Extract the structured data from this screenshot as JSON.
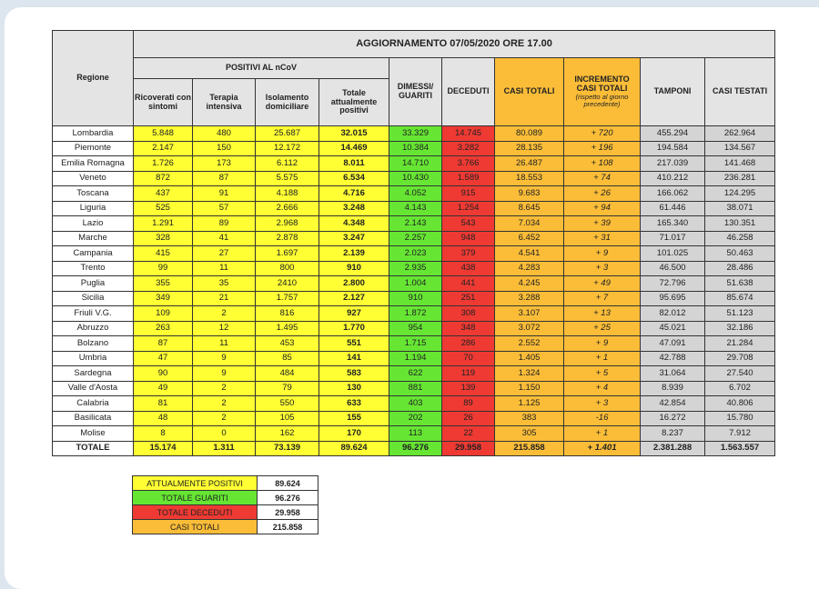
{
  "header": {
    "title": "AGGIORNAMENTO 07/05/2020 ORE 17.00",
    "regione": "Regione",
    "positivi_group": "POSITIVI AL nCoV",
    "columns": [
      "Ricoverati con sintomi",
      "Terapia intensiva",
      "Isolamento domiciliare",
      "Totale attualmente positivi",
      "DIMESSI/ GUARITI",
      "DECEDUTI",
      "CASI TOTALI",
      "INCREMENTO CASI TOTALI",
      "TAMPONI",
      "CASI TESTATI"
    ],
    "incremento_note": "(rispetto al giorno precedente)"
  },
  "colors": {
    "yellow": "#ffff33",
    "green": "#66e633",
    "red": "#ee3a33",
    "orange": "#fbbd38",
    "gray": "#d4d4d4"
  },
  "rows": [
    [
      "Lombardia",
      "5.848",
      "480",
      "25.687",
      "32.015",
      "33.329",
      "14.745",
      "80.089",
      "+ 720",
      "455.294",
      "262.964"
    ],
    [
      "Piemonte",
      "2.147",
      "150",
      "12.172",
      "14.469",
      "10.384",
      "3.282",
      "28.135",
      "+ 196",
      "194.584",
      "134.567"
    ],
    [
      "Emilia Romagna",
      "1.726",
      "173",
      "6.112",
      "8.011",
      "14.710",
      "3.766",
      "26.487",
      "+ 108",
      "217.039",
      "141.468"
    ],
    [
      "Veneto",
      "872",
      "87",
      "5.575",
      "6.534",
      "10.430",
      "1.589",
      "18.553",
      "+ 74",
      "410.212",
      "236.281"
    ],
    [
      "Toscana",
      "437",
      "91",
      "4.188",
      "4.716",
      "4.052",
      "915",
      "9.683",
      "+ 26",
      "166.062",
      "124.295"
    ],
    [
      "Liguria",
      "525",
      "57",
      "2.666",
      "3.248",
      "4.143",
      "1.254",
      "8.645",
      "+ 94",
      "61.446",
      "38.071"
    ],
    [
      "Lazio",
      "1.291",
      "89",
      "2.968",
      "4.348",
      "2.143",
      "543",
      "7.034",
      "+ 39",
      "165.340",
      "130.351"
    ],
    [
      "Marche",
      "328",
      "41",
      "2.878",
      "3.247",
      "2.257",
      "948",
      "6.452",
      "+ 31",
      "71.017",
      "46.258"
    ],
    [
      "Campania",
      "415",
      "27",
      "1.697",
      "2.139",
      "2.023",
      "379",
      "4.541",
      "+ 9",
      "101.025",
      "50.463"
    ],
    [
      "Trento",
      "99",
      "11",
      "800",
      "910",
      "2.935",
      "438",
      "4.283",
      "+ 3",
      "46.500",
      "28.486"
    ],
    [
      "Puglia",
      "355",
      "35",
      "2410",
      "2.800",
      "1.004",
      "441",
      "4.245",
      "+ 49",
      "72.796",
      "51.638"
    ],
    [
      "Sicilia",
      "349",
      "21",
      "1.757",
      "2.127",
      "910",
      "251",
      "3.288",
      "+ 7",
      "95.695",
      "85.674"
    ],
    [
      "Friuli V.G.",
      "109",
      "2",
      "816",
      "927",
      "1.872",
      "308",
      "3.107",
      "+ 13",
      "82.012",
      "51.123"
    ],
    [
      "Abruzzo",
      "263",
      "12",
      "1.495",
      "1.770",
      "954",
      "348",
      "3.072",
      "+ 25",
      "45.021",
      "32.186"
    ],
    [
      "Bolzano",
      "87",
      "11",
      "453",
      "551",
      "1.715",
      "286",
      "2.552",
      "+ 9",
      "47.091",
      "21.284"
    ],
    [
      "Umbria",
      "47",
      "9",
      "85",
      "141",
      "1.194",
      "70",
      "1.405",
      "+ 1",
      "42.788",
      "29.708"
    ],
    [
      "Sardegna",
      "90",
      "9",
      "484",
      "583",
      "622",
      "119",
      "1.324",
      "+ 5",
      "31.064",
      "27.540"
    ],
    [
      "Valle d'Aosta",
      "49",
      "2",
      "79",
      "130",
      "881",
      "139",
      "1.150",
      "+ 4",
      "8.939",
      "6.702"
    ],
    [
      "Calabria",
      "81",
      "2",
      "550",
      "633",
      "403",
      "89",
      "1.125",
      "+ 3",
      "42.854",
      "40.806"
    ],
    [
      "Basilicata",
      "48",
      "2",
      "105",
      "155",
      "202",
      "26",
      "383",
      "-16",
      "16.272",
      "15.780"
    ],
    [
      "Molise",
      "8",
      "0",
      "162",
      "170",
      "113",
      "22",
      "305",
      "+ 1",
      "8.237",
      "7.912"
    ]
  ],
  "total": [
    "TOTALE",
    "15.174",
    "1.311",
    "73.139",
    "89.624",
    "96.276",
    "29.958",
    "215.858",
    "+ 1.401",
    "2.381.288",
    "1.563.557"
  ],
  "summary": [
    {
      "label": "ATTUALMENTE POSITIVI",
      "value": "89.624",
      "color": "#ffff33"
    },
    {
      "label": "TOTALE GUARITI",
      "value": "96.276",
      "color": "#66e633"
    },
    {
      "label": "TOTALE DECEDUTI",
      "value": "29.958",
      "color": "#ee3a33"
    },
    {
      "label": "CASI TOTALI",
      "value": "215.858",
      "color": "#fbbd38"
    }
  ]
}
